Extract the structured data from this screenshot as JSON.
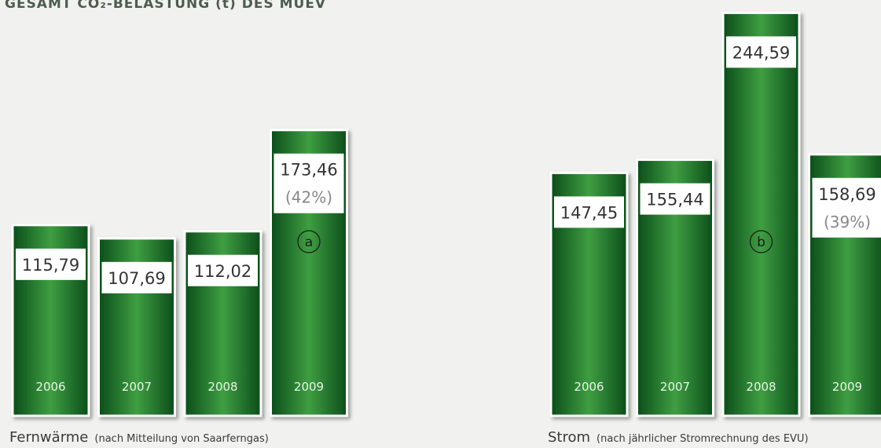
{
  "title": "GESAMT CO₂-BELASTUNG (t) DES MUEV",
  "chart_data": [
    {
      "type": "bar",
      "caption": "Fernwärme",
      "caption_note": "(nach Mitteilung von Saarferngas)",
      "categories": [
        "2006",
        "2007",
        "2008",
        "2009"
      ],
      "values": [
        115.79,
        107.69,
        112.02,
        173.46
      ],
      "value_labels": [
        "115,79",
        "107,69",
        "112,02",
        "173,46"
      ],
      "percent_labels": [
        null,
        null,
        null,
        "(42%)"
      ],
      "marker_labels": [
        null,
        null,
        null,
        "a"
      ],
      "color": "#1f7a2e"
    },
    {
      "type": "bar",
      "caption": "Strom",
      "caption_note": "(nach jährlicher Stromrechnung des EVU)",
      "categories": [
        "2006",
        "2007",
        "2008",
        "2009"
      ],
      "values": [
        147.45,
        155.44,
        244.59,
        158.69
      ],
      "value_labels": [
        "147,45",
        "155,44",
        "244,59",
        "158,69"
      ],
      "percent_labels": [
        null,
        null,
        null,
        "(39%)"
      ],
      "marker_labels": [
        null,
        null,
        "b",
        null
      ],
      "color": "#1f7a2e"
    }
  ]
}
